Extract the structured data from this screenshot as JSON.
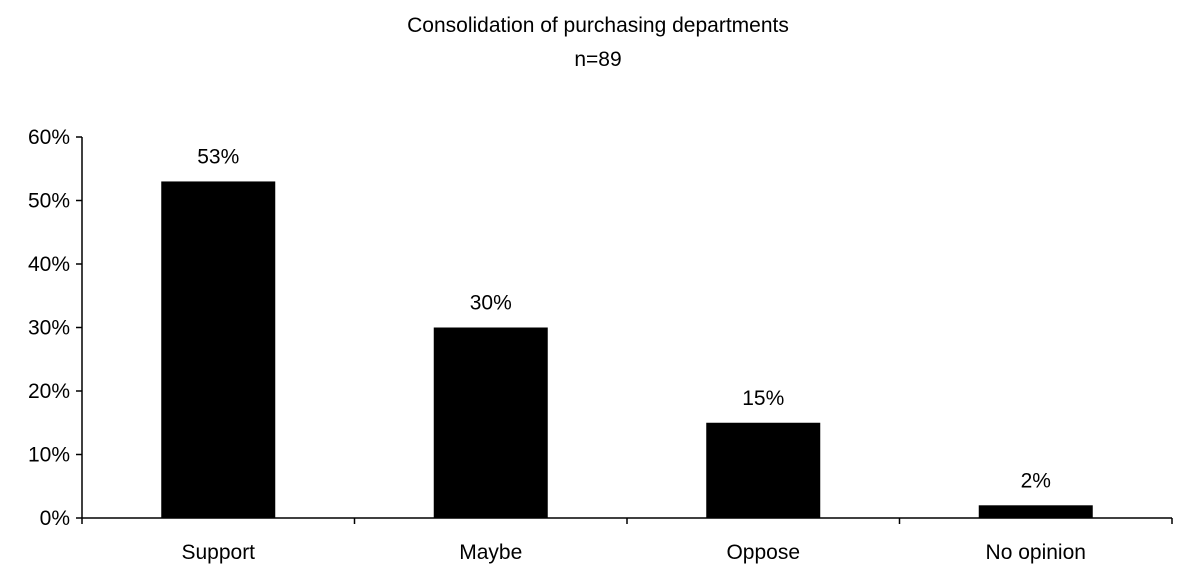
{
  "chart_data": {
    "type": "bar",
    "title": "Consolidation of purchasing departments",
    "subtitle": "n=89",
    "xlabel": "",
    "ylabel": "",
    "categories": [
      "Support",
      "Maybe",
      "Oppose",
      "No opinion"
    ],
    "values": [
      53,
      30,
      15,
      2
    ],
    "data_labels": [
      "53%",
      "30%",
      "15%",
      "2%"
    ],
    "ylim": [
      0,
      60
    ],
    "yticks": [
      0,
      10,
      20,
      30,
      40,
      50,
      60
    ],
    "ytick_labels": [
      "0%",
      "10%",
      "20%",
      "30%",
      "40%",
      "50%",
      "60%"
    ],
    "grid": false,
    "legend": "none",
    "bar_color": "#000000"
  }
}
